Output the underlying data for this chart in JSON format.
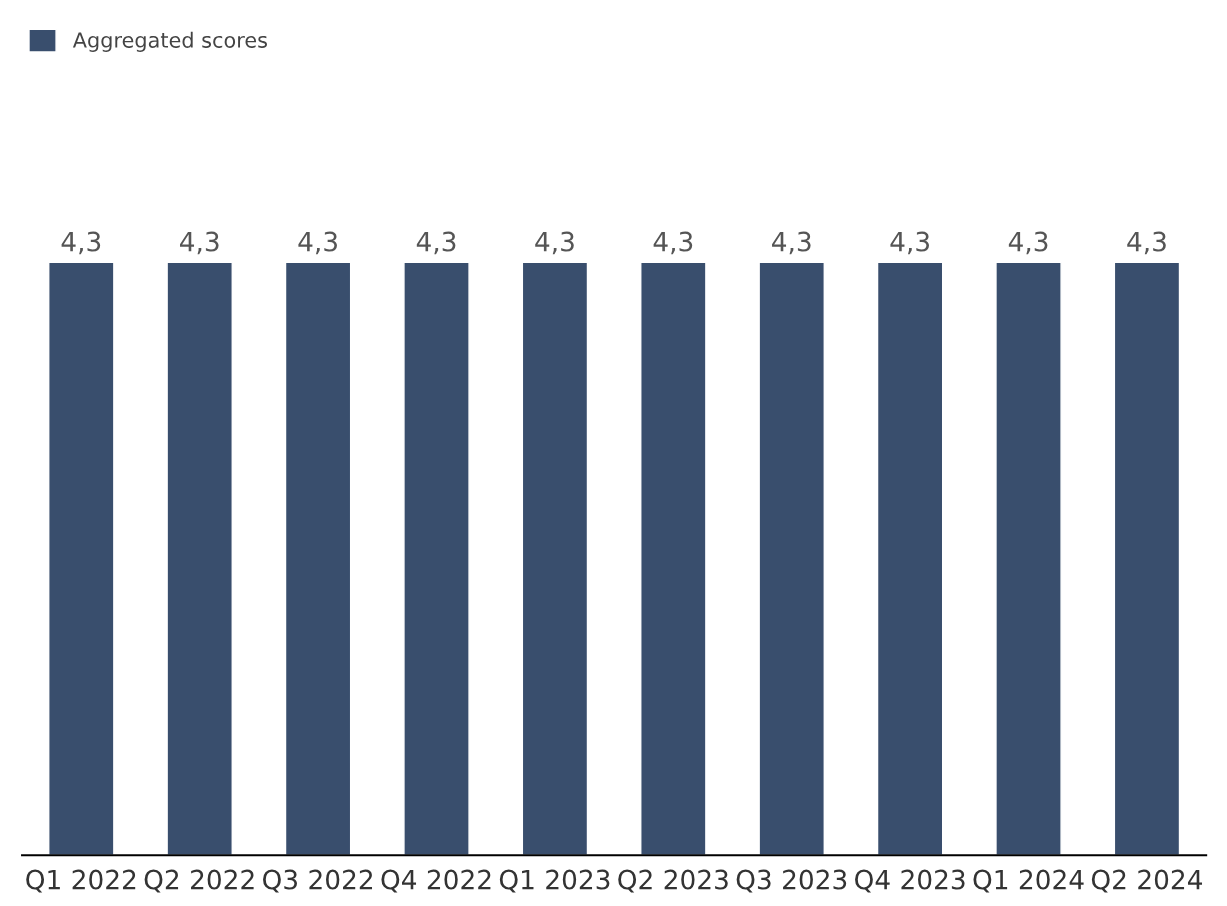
{
  "chart_data": {
    "type": "bar",
    "categories": [
      "Q1 2022",
      "Q2 2022",
      "Q3 2022",
      "Q4 2022",
      "Q1 2023",
      "Q2 2023",
      "Q3 2023",
      "Q4 2023",
      "Q1 2024",
      "Q2 2024"
    ],
    "series": [
      {
        "name": "Aggregated scores",
        "color": "#394e6d",
        "values": [
          4.3,
          4.3,
          4.3,
          4.3,
          4.3,
          4.3,
          4.3,
          4.3,
          4.3,
          4.3
        ],
        "value_labels": [
          "4,3",
          "4,3",
          "4,3",
          "4,3",
          "4,3",
          "4,3",
          "4,3",
          "4,3",
          "4,3",
          "4,3"
        ]
      }
    ],
    "legend": "top left",
    "grid": false
  }
}
